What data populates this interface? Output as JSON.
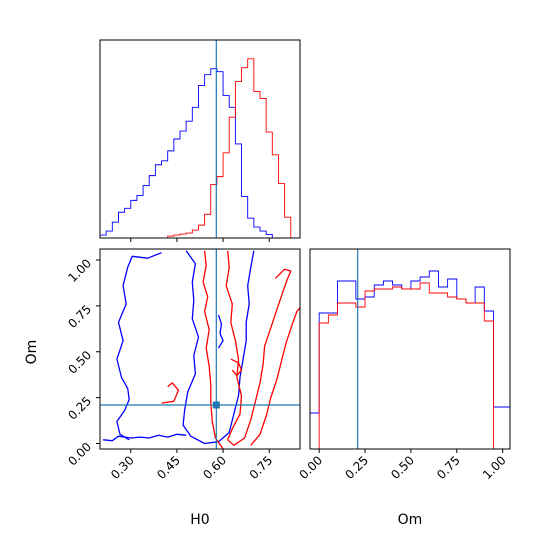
{
  "colors": {
    "blue": "#0000ff",
    "red": "#ff0000",
    "truth": "#1f77b4"
  },
  "chart_data": [
    {
      "type": "histogram",
      "panel": "H0 marginal",
      "xlim": [
        0.2,
        0.85
      ],
      "ylim": [
        0,
        1
      ],
      "truth_x": 0.578,
      "bin_edges": [
        0.2,
        0.22,
        0.24,
        0.26,
        0.28,
        0.3,
        0.32,
        0.34,
        0.36,
        0.38,
        0.4,
        0.42,
        0.44,
        0.46,
        0.48,
        0.5,
        0.52,
        0.54,
        0.56,
        0.58,
        0.6,
        0.62,
        0.64,
        0.66,
        0.68,
        0.7,
        0.72,
        0.74,
        0.76,
        0.78,
        0.8,
        0.82,
        0.84
      ],
      "series": [
        {
          "color": "blue",
          "values": [
            0.015,
            0.035,
            0.08,
            0.13,
            0.15,
            0.19,
            0.215,
            0.265,
            0.315,
            0.37,
            0.39,
            0.44,
            0.5,
            0.54,
            0.59,
            0.66,
            0.77,
            0.825,
            0.855,
            0.84,
            0.72,
            0.66,
            0.475,
            0.21,
            0.1,
            0.055,
            0.035,
            0.018,
            0.0,
            0.0,
            0.0,
            0.0
          ]
        },
        {
          "color": "red",
          "values": [
            0,
            0,
            0,
            0,
            0,
            0,
            0,
            0,
            0,
            0,
            0,
            0.01,
            0.015,
            0.02,
            0.025,
            0.04,
            0.065,
            0.12,
            0.27,
            0.31,
            0.43,
            0.61,
            0.79,
            0.86,
            0.905,
            0.74,
            0.705,
            0.535,
            0.42,
            0.275,
            0.105,
            0.0
          ]
        }
      ]
    },
    {
      "type": "contour",
      "panel": "H0 vs Om",
      "xlabel": "H0",
      "ylabel": "Om",
      "xlim": [
        0.2,
        0.85
      ],
      "ylim": [
        -0.03,
        1.06
      ],
      "xticks": [
        "0.30",
        "0.45",
        "0.60",
        "0.75"
      ],
      "xtick_values": [
        0.3,
        0.45,
        0.6,
        0.75
      ],
      "yticks": [
        "0.00",
        "0.25",
        "0.50",
        "0.75",
        "1.00"
      ],
      "ytick_values": [
        0.0,
        0.25,
        0.5,
        0.75,
        1.0
      ],
      "truth": [
        0.578,
        0.21
      ],
      "contours": [
        {
          "color": "blue",
          "points": [
            [
              0.295,
              0.02
            ],
            [
              0.265,
              0.05
            ],
            [
              0.255,
              0.12
            ],
            [
              0.28,
              0.18
            ],
            [
              0.295,
              0.24
            ],
            [
              0.29,
              0.3
            ],
            [
              0.27,
              0.36
            ],
            [
              0.255,
              0.46
            ],
            [
              0.275,
              0.56
            ],
            [
              0.26,
              0.66
            ],
            [
              0.285,
              0.76
            ],
            [
              0.275,
              0.86
            ],
            [
              0.29,
              0.96
            ],
            [
              0.305,
              1.02
            ],
            [
              0.355,
              1.01
            ],
            [
              0.4,
              1.04
            ]
          ]
        },
        {
          "color": "blue",
          "points": [
            [
              0.48,
              1.05
            ],
            [
              0.51,
              0.98
            ],
            [
              0.5,
              0.88
            ],
            [
              0.505,
              0.78
            ],
            [
              0.5,
              0.68
            ],
            [
              0.52,
              0.58
            ],
            [
              0.505,
              0.48
            ],
            [
              0.51,
              0.38
            ],
            [
              0.485,
              0.28
            ],
            [
              0.475,
              0.18
            ],
            [
              0.47,
              0.1
            ],
            [
              0.495,
              0.04
            ],
            [
              0.54,
              0.0
            ],
            [
              0.585,
              0.01
            ],
            [
              0.62,
              0.06
            ],
            [
              0.635,
              0.16
            ],
            [
              0.65,
              0.26
            ],
            [
              0.655,
              0.36
            ],
            [
              0.665,
              0.46
            ],
            [
              0.675,
              0.56
            ],
            [
              0.675,
              0.66
            ],
            [
              0.685,
              0.76
            ],
            [
              0.68,
              0.86
            ],
            [
              0.69,
              0.96
            ],
            [
              0.7,
              1.05
            ]
          ]
        },
        {
          "color": "blue",
          "points": [
            [
              0.21,
              0.02
            ],
            [
              0.24,
              0.015
            ],
            [
              0.26,
              0.04
            ],
            [
              0.3,
              0.03
            ],
            [
              0.33,
              0.035
            ],
            [
              0.36,
              0.03
            ],
            [
              0.39,
              0.045
            ],
            [
              0.42,
              0.035
            ],
            [
              0.45,
              0.05
            ],
            [
              0.48,
              0.045
            ]
          ]
        },
        {
          "color": "blue",
          "points": [
            [
              0.585,
              0.7
            ],
            [
              0.595,
              0.65
            ],
            [
              0.59,
              0.6
            ],
            [
              0.6,
              0.56
            ],
            [
              0.585,
              0.52
            ]
          ]
        },
        {
          "color": "red",
          "points": [
            [
              0.4,
              0.22
            ],
            [
              0.44,
              0.23
            ],
            [
              0.455,
              0.29
            ],
            [
              0.435,
              0.33
            ],
            [
              0.42,
              0.31
            ]
          ]
        },
        {
          "color": "red",
          "points": [
            [
              0.54,
              1.05
            ],
            [
              0.545,
              0.97
            ],
            [
              0.535,
              0.88
            ],
            [
              0.55,
              0.8
            ],
            [
              0.54,
              0.72
            ],
            [
              0.555,
              0.62
            ],
            [
              0.545,
              0.52
            ],
            [
              0.555,
              0.42
            ],
            [
              0.56,
              0.32
            ],
            [
              0.56,
              0.22
            ],
            [
              0.565,
              0.12
            ],
            [
              0.575,
              0.03
            ],
            [
              0.6,
              -0.03
            ]
          ]
        },
        {
          "color": "red",
          "points": [
            [
              0.615,
              1.05
            ],
            [
              0.62,
              0.96
            ],
            [
              0.61,
              0.86
            ],
            [
              0.63,
              0.76
            ],
            [
              0.625,
              0.66
            ],
            [
              0.64,
              0.56
            ],
            [
              0.65,
              0.46
            ],
            [
              0.645,
              0.36
            ],
            [
              0.66,
              0.26
            ],
            [
              0.655,
              0.16
            ],
            [
              0.63,
              0.08
            ],
            [
              0.615,
              0.02
            ],
            [
              0.635,
              -0.01
            ],
            [
              0.67,
              0.03
            ],
            [
              0.69,
              0.13
            ],
            [
              0.705,
              0.23
            ],
            [
              0.72,
              0.33
            ],
            [
              0.73,
              0.43
            ],
            [
              0.735,
              0.53
            ],
            [
              0.755,
              0.63
            ],
            [
              0.775,
              0.73
            ],
            [
              0.795,
              0.83
            ],
            [
              0.81,
              0.9
            ],
            [
              0.82,
              0.94
            ],
            [
              0.8,
              0.95
            ],
            [
              0.77,
              0.9
            ]
          ]
        },
        {
          "color": "red",
          "points": [
            [
              0.69,
              -0.01
            ],
            [
              0.72,
              0.05
            ],
            [
              0.74,
              0.15
            ],
            [
              0.755,
              0.25
            ],
            [
              0.775,
              0.35
            ],
            [
              0.79,
              0.45
            ],
            [
              0.805,
              0.55
            ],
            [
              0.825,
              0.65
            ],
            [
              0.84,
              0.72
            ],
            [
              0.85,
              0.74
            ]
          ]
        },
        {
          "color": "red",
          "points": [
            [
              0.625,
              0.46
            ],
            [
              0.65,
              0.44
            ],
            [
              0.66,
              0.4
            ],
            [
              0.645,
              0.37
            ],
            [
              0.63,
              0.4
            ]
          ]
        }
      ]
    },
    {
      "type": "histogram",
      "panel": "Om marginal",
      "xlabel": "Om",
      "xlim": [
        -0.05,
        1.04
      ],
      "ylim": [
        0,
        1
      ],
      "xticks": [
        "0.00",
        "0.25",
        "0.50",
        "0.75",
        "1.00"
      ],
      "xtick_values": [
        0.0,
        0.25,
        0.5,
        0.75,
        1.0
      ],
      "truth_x": 0.21,
      "bin_edges": [
        -0.05,
        0.0,
        0.05,
        0.1,
        0.15,
        0.2,
        0.25,
        0.3,
        0.35,
        0.4,
        0.45,
        0.5,
        0.55,
        0.6,
        0.65,
        0.7,
        0.75,
        0.8,
        0.85,
        0.9,
        0.95,
        1.0,
        1.04
      ],
      "series": [
        {
          "color": "blue",
          "values": [
            0.18,
            0.68,
            0.68,
            0.84,
            0.84,
            0.75,
            0.76,
            0.82,
            0.84,
            0.82,
            0.8,
            0.84,
            0.86,
            0.89,
            0.81,
            0.85,
            0.75,
            0.73,
            0.81,
            0.69,
            0.21,
            0.21
          ]
        },
        {
          "color": "red",
          "values": [
            0.0,
            0.63,
            0.67,
            0.73,
            0.73,
            0.71,
            0.79,
            0.8,
            0.8,
            0.81,
            0.8,
            0.8,
            0.83,
            0.78,
            0.78,
            0.76,
            0.75,
            0.73,
            0.73,
            0.64,
            0.0,
            0.0
          ]
        }
      ]
    }
  ]
}
